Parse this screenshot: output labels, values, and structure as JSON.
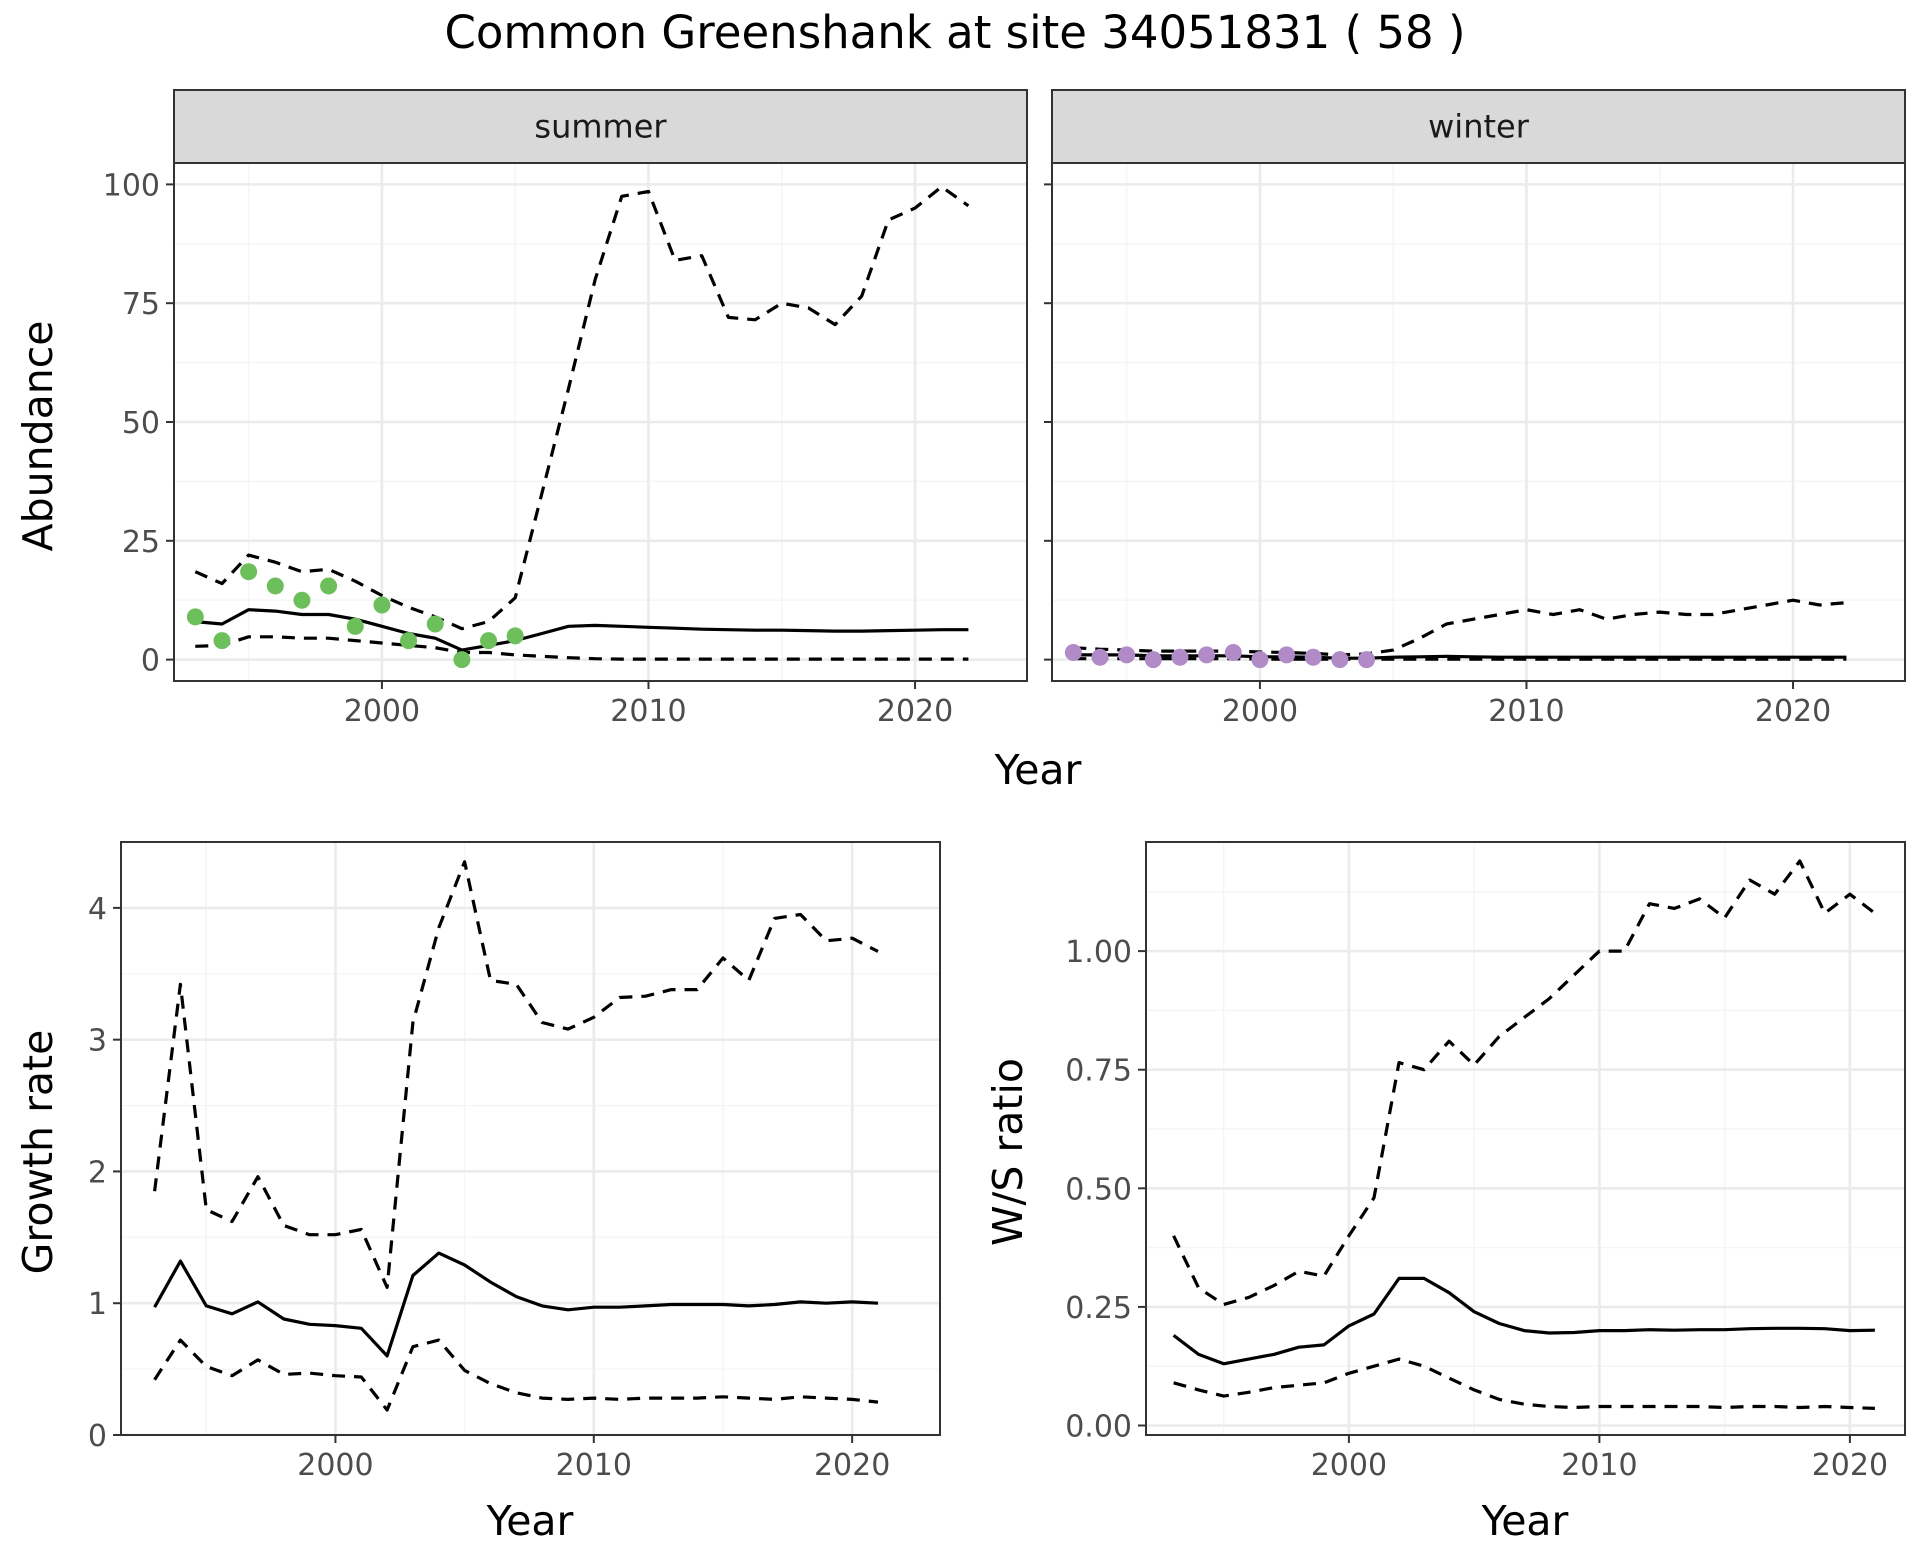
{
  "figure_title": "Common Greenshank at site 34051831 ( 58 )",
  "colors": {
    "summer_points": "#6dbf5b",
    "winter_points": "#b08bc8",
    "line": "#000000",
    "strip_fill": "#d9d9d9",
    "grid_major": "#ebebeb",
    "grid_minor": "#f5f5f5"
  },
  "chart_data": [
    {
      "type": "line",
      "panel": "summer",
      "strip": "summer",
      "title": "",
      "xlabel": "Year",
      "ylabel": "Abundance",
      "xlim": [
        1992.2,
        2024.2
      ],
      "ylim": [
        -4.5,
        104.5
      ],
      "xticks": [
        2000,
        2010,
        2020
      ],
      "yticks": [
        0,
        25,
        50,
        75,
        100
      ],
      "ytick_labels": [
        "0",
        "25",
        "50",
        "75",
        "100"
      ],
      "grid": true,
      "series": [
        {
          "role": "median",
          "style": "solid",
          "x": [
            1993,
            1994,
            1995,
            1996,
            1997,
            1998,
            1999,
            2000,
            2001,
            2002,
            2003,
            2004,
            2005,
            2006,
            2007,
            2008,
            2009,
            2010,
            2011,
            2012,
            2013,
            2014,
            2015,
            2016,
            2017,
            2018,
            2019,
            2020,
            2021,
            2022
          ],
          "values": [
            8.0,
            7.5,
            10.5,
            10.2,
            9.5,
            9.5,
            8.5,
            7.0,
            5.5,
            4.5,
            2.0,
            3.0,
            4.0,
            5.5,
            7.0,
            7.2,
            7.0,
            6.8,
            6.6,
            6.4,
            6.3,
            6.2,
            6.2,
            6.1,
            6.0,
            6.0,
            6.1,
            6.2,
            6.3,
            6.3
          ]
        },
        {
          "role": "upper",
          "style": "dashed",
          "x": [
            1993,
            1994,
            1995,
            1996,
            1997,
            1998,
            1999,
            2000,
            2001,
            2002,
            2003,
            2004,
            2005,
            2006,
            2007,
            2008,
            2009,
            2010,
            2011,
            2012,
            2013,
            2014,
            2015,
            2016,
            2017,
            2018,
            2019,
            2020,
            2021,
            2022
          ],
          "values": [
            18.5,
            16.0,
            22.0,
            20.5,
            18.5,
            19.0,
            16.5,
            13.5,
            11.0,
            9.0,
            6.5,
            8.0,
            13.0,
            35.0,
            57.0,
            80.0,
            97.5,
            98.5,
            84.0,
            85.0,
            72.0,
            71.5,
            75.0,
            74.0,
            70.5,
            76.5,
            92.5,
            95.0,
            99.5,
            95.5
          ]
        },
        {
          "role": "lower",
          "style": "dashed",
          "x": [
            1993,
            1994,
            1995,
            1996,
            1997,
            1998,
            1999,
            2000,
            2001,
            2002,
            2003,
            2004,
            2005,
            2006,
            2007,
            2008,
            2009,
            2010,
            2011,
            2012,
            2013,
            2014,
            2015,
            2016,
            2017,
            2018,
            2019,
            2020,
            2021,
            2022
          ],
          "values": [
            2.8,
            3.0,
            4.8,
            4.8,
            4.5,
            4.5,
            4.0,
            3.5,
            3.0,
            2.5,
            1.5,
            1.5,
            1.0,
            0.7,
            0.4,
            0.2,
            0.1,
            0.1,
            0.1,
            0.1,
            0.1,
            0.1,
            0.1,
            0.1,
            0.1,
            0.1,
            0.1,
            0.1,
            0.1,
            0.1
          ]
        }
      ],
      "points": {
        "x": [
          1993,
          1994,
          1995,
          1996,
          1997,
          1998,
          1999,
          2000,
          2001,
          2002,
          2003,
          2004,
          2005
        ],
        "values": [
          9.0,
          4.0,
          18.5,
          15.5,
          12.5,
          15.5,
          7.0,
          11.5,
          4.0,
          7.5,
          0.0,
          4.0,
          5.0
        ]
      }
    },
    {
      "type": "line",
      "panel": "winter",
      "strip": "winter",
      "title": "",
      "xlabel": "Year",
      "ylabel": "Abundance",
      "xlim": [
        1992.2,
        2024.2
      ],
      "ylim": [
        -4.5,
        104.5
      ],
      "xticks": [
        2000,
        2010,
        2020
      ],
      "yticks": [
        0,
        25,
        50,
        75,
        100
      ],
      "grid": true,
      "series": [
        {
          "role": "median",
          "style": "solid",
          "x": [
            1993,
            1994,
            1995,
            1996,
            1997,
            1998,
            1999,
            2000,
            2001,
            2002,
            2003,
            2004,
            2005,
            2006,
            2007,
            2008,
            2009,
            2010,
            2011,
            2012,
            2013,
            2014,
            2015,
            2016,
            2017,
            2018,
            2019,
            2020,
            2021,
            2022
          ],
          "values": [
            1.0,
            1.0,
            1.0,
            0.8,
            0.8,
            0.8,
            0.8,
            0.6,
            0.6,
            0.5,
            0.3,
            0.3,
            0.5,
            0.6,
            0.7,
            0.6,
            0.5,
            0.5,
            0.5,
            0.5,
            0.5,
            0.5,
            0.5,
            0.5,
            0.5,
            0.5,
            0.5,
            0.5,
            0.5,
            0.5
          ]
        },
        {
          "role": "upper",
          "style": "dashed",
          "x": [
            1993,
            1994,
            1995,
            1996,
            1997,
            1998,
            1999,
            2000,
            2001,
            2002,
            2003,
            2004,
            2005,
            2006,
            2007,
            2008,
            2009,
            2010,
            2011,
            2012,
            2013,
            2014,
            2015,
            2016,
            2017,
            2018,
            2019,
            2020,
            2021,
            2022
          ],
          "values": [
            2.5,
            2.2,
            2.0,
            1.8,
            1.8,
            1.8,
            1.8,
            1.6,
            1.5,
            1.3,
            1.0,
            1.2,
            2.0,
            4.5,
            7.5,
            8.5,
            9.5,
            10.5,
            9.5,
            10.5,
            8.5,
            9.5,
            10.0,
            9.5,
            9.5,
            10.5,
            11.5,
            12.5,
            11.5,
            12.0
          ]
        },
        {
          "role": "lower",
          "style": "dashed",
          "x": [
            1993,
            1994,
            1995,
            1996,
            1997,
            1998,
            1999,
            2000,
            2001,
            2002,
            2003,
            2004,
            2005,
            2006,
            2007,
            2008,
            2009,
            2010,
            2011,
            2012,
            2013,
            2014,
            2015,
            2016,
            2017,
            2018,
            2019,
            2020,
            2021,
            2022
          ],
          "values": [
            0.2,
            0.2,
            0.2,
            0.2,
            0.2,
            0.2,
            0.2,
            0.1,
            0.1,
            0.1,
            0.1,
            0.1,
            0.1,
            0.1,
            0.1,
            0.1,
            0.1,
            0.1,
            0.1,
            0.1,
            0.1,
            0.1,
            0.1,
            0.1,
            0.1,
            0.1,
            0.1,
            0.1,
            0.1,
            0.1
          ]
        }
      ],
      "points": {
        "x": [
          1993,
          1994,
          1995,
          1996,
          1997,
          1998,
          1999,
          2000,
          2001,
          2002,
          2003,
          2004
        ],
        "values": [
          1.5,
          0.5,
          1.0,
          0.0,
          0.5,
          1.0,
          1.5,
          0.0,
          1.0,
          0.5,
          0.0,
          0.0
        ]
      }
    },
    {
      "type": "line",
      "panel": "growth",
      "title": "",
      "xlabel": "Year",
      "ylabel": "Growth rate",
      "xlim": [
        1991.7,
        2023.4
      ],
      "ylim": [
        0,
        4.5
      ],
      "xticks": [
        2000,
        2010,
        2020
      ],
      "yticks": [
        0,
        1,
        2,
        3,
        4
      ],
      "ytick_labels": [
        "0",
        "1",
        "2",
        "3",
        "4"
      ],
      "grid": true,
      "series": [
        {
          "role": "median",
          "style": "solid",
          "x": [
            1993,
            1994,
            1995,
            1996,
            1997,
            1998,
            1999,
            2000,
            2001,
            2002,
            2003,
            2004,
            2005,
            2006,
            2007,
            2008,
            2009,
            2010,
            2011,
            2012,
            2013,
            2014,
            2015,
            2016,
            2017,
            2018,
            2019,
            2020,
            2021
          ],
          "values": [
            0.97,
            1.32,
            0.98,
            0.92,
            1.01,
            0.88,
            0.84,
            0.83,
            0.81,
            0.6,
            1.21,
            1.38,
            1.29,
            1.16,
            1.05,
            0.98,
            0.95,
            0.97,
            0.97,
            0.98,
            0.99,
            0.99,
            0.99,
            0.98,
            0.99,
            1.01,
            1.0,
            1.01,
            1.0
          ]
        },
        {
          "role": "upper",
          "style": "dashed",
          "x": [
            1993,
            1994,
            1995,
            1996,
            1997,
            1998,
            1999,
            2000,
            2001,
            2002,
            2003,
            2004,
            2005,
            2006,
            2007,
            2008,
            2009,
            2010,
            2011,
            2012,
            2013,
            2014,
            2015,
            2016,
            2017,
            2018,
            2019,
            2020,
            2021
          ],
          "values": [
            1.85,
            3.42,
            1.71,
            1.62,
            1.96,
            1.59,
            1.52,
            1.52,
            1.56,
            1.12,
            3.13,
            3.85,
            4.35,
            3.45,
            3.42,
            3.13,
            3.08,
            3.17,
            3.32,
            3.33,
            3.38,
            3.38,
            3.62,
            3.45,
            3.92,
            3.95,
            3.75,
            3.77,
            3.67
          ]
        },
        {
          "role": "lower",
          "style": "dashed",
          "x": [
            1993,
            1994,
            1995,
            1996,
            1997,
            1998,
            1999,
            2000,
            2001,
            2002,
            2003,
            2004,
            2005,
            2006,
            2007,
            2008,
            2009,
            2010,
            2011,
            2012,
            2013,
            2014,
            2015,
            2016,
            2017,
            2018,
            2019,
            2020,
            2021
          ],
          "values": [
            0.42,
            0.72,
            0.52,
            0.45,
            0.57,
            0.46,
            0.47,
            0.45,
            0.44,
            0.19,
            0.67,
            0.72,
            0.49,
            0.39,
            0.32,
            0.28,
            0.27,
            0.28,
            0.27,
            0.28,
            0.28,
            0.28,
            0.29,
            0.28,
            0.27,
            0.29,
            0.28,
            0.27,
            0.25
          ]
        }
      ]
    },
    {
      "type": "line",
      "panel": "ws-ratio",
      "title": "",
      "xlabel": "Year",
      "ylabel": "W/S ratio",
      "xlim": [
        1991.9,
        2022.2
      ],
      "ylim": [
        -0.02,
        1.23
      ],
      "xticks": [
        2000,
        2010,
        2020
      ],
      "yticks": [
        0,
        0.25,
        0.5,
        0.75,
        1
      ],
      "ytick_labels": [
        "0.00",
        "0.25",
        "0.50",
        "0.75",
        "1.00"
      ],
      "grid": true,
      "series": [
        {
          "role": "median",
          "style": "solid",
          "x": [
            1993,
            1994,
            1995,
            1996,
            1997,
            1998,
            1999,
            2000,
            2001,
            2002,
            2003,
            2004,
            2005,
            2006,
            2007,
            2008,
            2009,
            2010,
            2011,
            2012,
            2013,
            2014,
            2015,
            2016,
            2017,
            2018,
            2019,
            2020,
            2021
          ],
          "values": [
            0.19,
            0.15,
            0.13,
            0.14,
            0.15,
            0.165,
            0.17,
            0.21,
            0.235,
            0.31,
            0.31,
            0.28,
            0.24,
            0.215,
            0.2,
            0.195,
            0.196,
            0.2,
            0.2,
            0.202,
            0.201,
            0.202,
            0.202,
            0.204,
            0.205,
            0.205,
            0.204,
            0.2,
            0.201
          ]
        },
        {
          "role": "upper",
          "style": "dashed",
          "x": [
            1993,
            1994,
            1995,
            1996,
            1997,
            1998,
            1999,
            2000,
            2001,
            2002,
            2003,
            2004,
            2005,
            2006,
            2007,
            2008,
            2009,
            2010,
            2011,
            2012,
            2013,
            2014,
            2015,
            2016,
            2017,
            2018,
            2019,
            2020,
            2021
          ],
          "values": [
            0.4,
            0.29,
            0.255,
            0.27,
            0.295,
            0.325,
            0.315,
            0.4,
            0.48,
            0.765,
            0.75,
            0.81,
            0.76,
            0.82,
            0.86,
            0.9,
            0.95,
            1.0,
            1.0,
            1.1,
            1.09,
            1.11,
            1.07,
            1.15,
            1.12,
            1.19,
            1.08,
            1.12,
            1.08
          ]
        },
        {
          "role": "lower",
          "style": "dashed",
          "x": [
            1993,
            1994,
            1995,
            1996,
            1997,
            1998,
            1999,
            2000,
            2001,
            2002,
            2003,
            2004,
            2005,
            2006,
            2007,
            2008,
            2009,
            2010,
            2011,
            2012,
            2013,
            2014,
            2015,
            2016,
            2017,
            2018,
            2019,
            2020,
            2021
          ],
          "values": [
            0.09,
            0.075,
            0.062,
            0.07,
            0.08,
            0.085,
            0.09,
            0.11,
            0.125,
            0.14,
            0.125,
            0.1,
            0.075,
            0.055,
            0.045,
            0.04,
            0.038,
            0.04,
            0.04,
            0.04,
            0.04,
            0.04,
            0.038,
            0.04,
            0.04,
            0.038,
            0.04,
            0.038,
            0.036
          ]
        }
      ]
    }
  ]
}
